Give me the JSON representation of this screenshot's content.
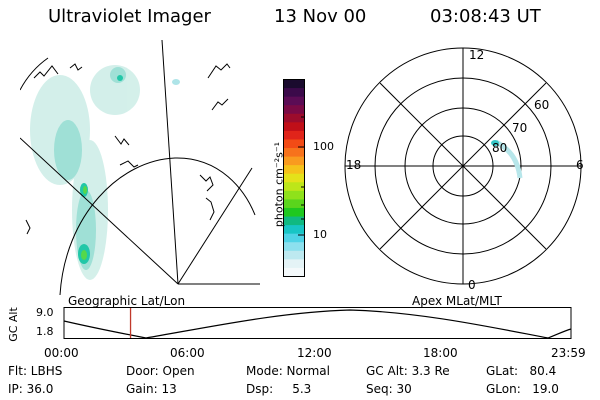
{
  "header": {
    "instrument": "Ultraviolet Imager",
    "date": "13 Nov 00",
    "time": "03:08:43 UT"
  },
  "geo_panel": {
    "caption": "Geographic Lat/Lon"
  },
  "colorbar": {
    "unit_label": "photon cm⁻²s⁻¹",
    "ticks": [
      "100",
      "10"
    ],
    "colors": [
      "#1a0b2e",
      "#3b0a4a",
      "#5b0c55",
      "#7a0a45",
      "#9c0c2c",
      "#c00f18",
      "#e0241a",
      "#f24b16",
      "#f7721c",
      "#f99a1f",
      "#f5c21b",
      "#e4e21a",
      "#bde619",
      "#8fe11b",
      "#5ad51c",
      "#1fc81f",
      "#10b981",
      "#18c5c5",
      "#4fd3e6",
      "#8ce0ee",
      "#bde9f0",
      "#e4f3f6",
      "#f4f9fb"
    ]
  },
  "polar_panel": {
    "caption": "Apex MLat/MLT",
    "mlt_labels": {
      "top": "12",
      "left": "18",
      "right": "6",
      "bottom": "0"
    },
    "lat_labels": [
      "60",
      "70",
      "80"
    ]
  },
  "timeline": {
    "ylabel": "GC Alt",
    "ytick_top": "9.0",
    "ytick_bottom": "1.8",
    "x_ticks": [
      "00:00",
      "06:00",
      "12:00",
      "18:00",
      "23:59"
    ],
    "current_time_hours": 3.15
  },
  "info": {
    "flt": "Flt: LBHS",
    "ip": "IP: 36.0",
    "door": "Door: Open",
    "gain": "Gain: 13",
    "mode": "Mode: Normal",
    "dsp": "Dsp:     5.3",
    "gc_alt": "GC Alt: 3.3 Re",
    "seq": "Seq: 30",
    "glat": "GLat:   80.4",
    "glon": "GLon:   19.0"
  }
}
